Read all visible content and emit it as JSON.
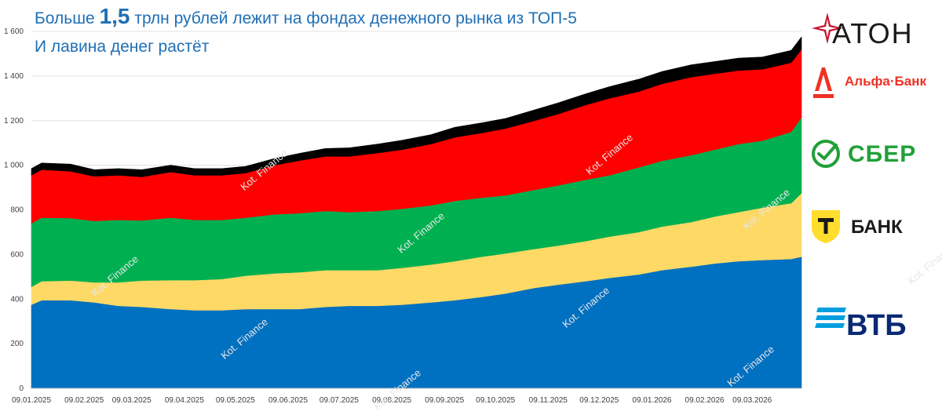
{
  "title": {
    "prefix": "Больше ",
    "highlight": "1,5",
    "suffix": " трлн рублей лежит на фондах денежного рынка из ТОП-5"
  },
  "subtitle": "И лавина денег растёт",
  "logos": [
    {
      "name": "АТОН",
      "icon": "aton-star-icon",
      "color": "#1a1a1a",
      "accent": "#c8102e"
    },
    {
      "name": "Альфа·Банк",
      "icon": "alfa-letter-icon",
      "color": "#ef3124"
    },
    {
      "name": "СБЕР",
      "icon": "sber-check-icon",
      "color": "#21a038"
    },
    {
      "name": "БАНК",
      "icon": "tbank-shield-icon",
      "color": "#1a1a1a",
      "accent": "#ffdd2d"
    },
    {
      "name": "ВТБ",
      "icon": "vtb-stripes-icon",
      "color": "#0a2973",
      "accent": "#009fdf"
    }
  ],
  "watermark": {
    "line1": "Kot.",
    "line2": "Finance"
  },
  "chart_data": {
    "type": "area",
    "stacked": true,
    "ylim": [
      0,
      1600
    ],
    "yticks": [
      0,
      200,
      400,
      600,
      800,
      1000,
      1200,
      1400,
      1600
    ],
    "ytick_labels": [
      "0",
      "200",
      "400",
      "600",
      "800",
      "1 000",
      "1 200",
      "1 400",
      "1 600"
    ],
    "x_start": "2025-01-09",
    "x_end": "2026-04-07",
    "xticks": [
      "2025-01-09",
      "2025-02-09",
      "2025-03-09",
      "2025-04-09",
      "2025-05-09",
      "2025-06-09",
      "2025-07-09",
      "2025-08-09",
      "2025-09-09",
      "2025-10-09",
      "2025-11-09",
      "2025-12-09",
      "2026-01-09",
      "2026-02-09",
      "2026-03-09"
    ],
    "xtick_labels": [
      "09.01.2025",
      "09.02.2025",
      "09.03.2025",
      "09.04.2025",
      "09.05.2025",
      "09.06.2025",
      "09.07.2025",
      "09.08.2025",
      "09.09.2025",
      "09.10.2025",
      "09.11.2025",
      "09.12.2025",
      "09.01.2026",
      "09.02.2026",
      "09.03.2026"
    ],
    "grid": true,
    "x": [
      "2025-01-09",
      "2025-01-15",
      "2025-02-01",
      "2025-02-15",
      "2025-03-01",
      "2025-03-15",
      "2025-04-01",
      "2025-04-15",
      "2025-05-01",
      "2025-05-15",
      "2025-06-01",
      "2025-06-15",
      "2025-07-01",
      "2025-07-15",
      "2025-08-01",
      "2025-08-15",
      "2025-09-01",
      "2025-09-15",
      "2025-10-01",
      "2025-10-15",
      "2025-11-01",
      "2025-11-15",
      "2025-12-01",
      "2025-12-15",
      "2026-01-01",
      "2026-01-15",
      "2026-02-01",
      "2026-02-15",
      "2026-03-01",
      "2026-03-15",
      "2026-04-01",
      "2026-04-07"
    ],
    "series": [
      {
        "name": "ВТБ",
        "color": "#0070c0",
        "values": [
          375,
          395,
          395,
          385,
          370,
          365,
          355,
          350,
          350,
          355,
          355,
          355,
          365,
          370,
          370,
          375,
          385,
          395,
          410,
          425,
          450,
          465,
          480,
          495,
          510,
          530,
          545,
          560,
          570,
          575,
          580,
          590
        ]
      },
      {
        "name": "Т-Банк",
        "color": "#ffd966",
        "values": [
          80,
          85,
          88,
          90,
          105,
          118,
          130,
          135,
          140,
          150,
          160,
          165,
          165,
          160,
          160,
          165,
          170,
          175,
          180,
          180,
          175,
          175,
          180,
          185,
          190,
          195,
          200,
          210,
          220,
          235,
          250,
          285
        ]
      },
      {
        "name": "Сбер",
        "color": "#00b050",
        "values": [
          285,
          285,
          280,
          275,
          280,
          270,
          280,
          270,
          265,
          260,
          265,
          265,
          265,
          260,
          265,
          265,
          265,
          270,
          265,
          260,
          265,
          270,
          275,
          275,
          290,
          295,
          300,
          300,
          305,
          300,
          320,
          340
        ]
      },
      {
        "name": "Альфа-Банк",
        "color": "#ff0000",
        "values": [
          215,
          215,
          210,
          200,
          200,
          195,
          205,
          200,
          200,
          200,
          220,
          235,
          245,
          250,
          260,
          265,
          275,
          285,
          290,
          300,
          310,
          320,
          335,
          345,
          340,
          345,
          350,
          340,
          330,
          320,
          310,
          305
        ]
      },
      {
        "name": "Атон",
        "color": "#000000",
        "values": [
          30,
          30,
          32,
          30,
          30,
          32,
          30,
          30,
          30,
          30,
          30,
          32,
          35,
          38,
          40,
          42,
          42,
          45,
          45,
          45,
          48,
          50,
          50,
          52,
          55,
          55,
          55,
          55,
          55,
          55,
          55,
          55
        ]
      }
    ]
  }
}
